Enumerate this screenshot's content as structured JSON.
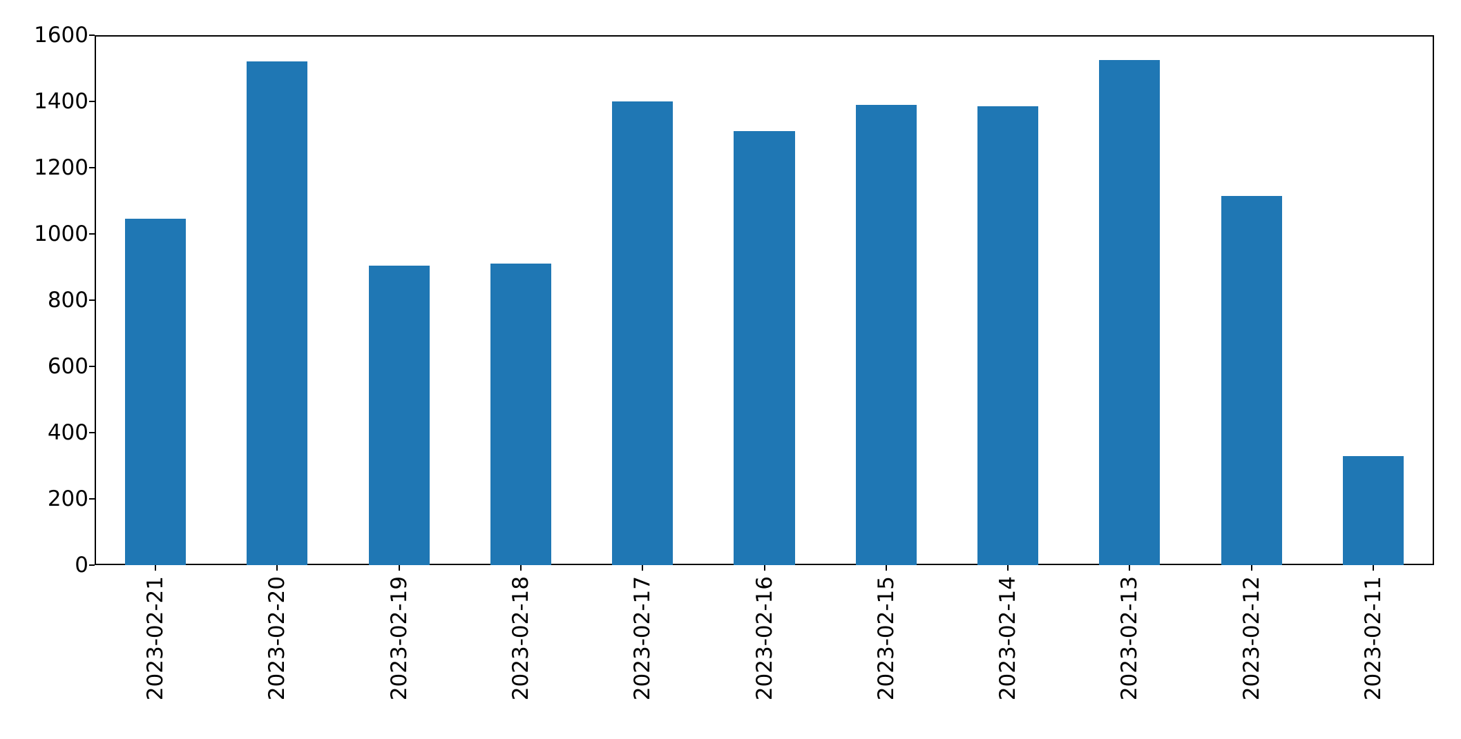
{
  "chart_data": {
    "type": "bar",
    "title": "",
    "xlabel": "",
    "ylabel": "",
    "categories": [
      "2023-02-21",
      "2023-02-20",
      "2023-02-19",
      "2023-02-18",
      "2023-02-17",
      "2023-02-16",
      "2023-02-15",
      "2023-02-14",
      "2023-02-13",
      "2023-02-12",
      "2023-02-11"
    ],
    "values": [
      1045,
      1520,
      905,
      910,
      1400,
      1310,
      1390,
      1385,
      1525,
      1115,
      330
    ],
    "ylim": [
      0,
      1600
    ],
    "yticks": [
      0,
      200,
      400,
      600,
      800,
      1000,
      1200,
      1400,
      1600
    ],
    "x_tick_rotation_deg": 90,
    "bar_width_fraction": 0.5,
    "grid": false,
    "legend": null,
    "bar_color": "#1f77b4",
    "spine_color": "#000000",
    "text_color": "#000000",
    "background_color": "#ffffff"
  }
}
